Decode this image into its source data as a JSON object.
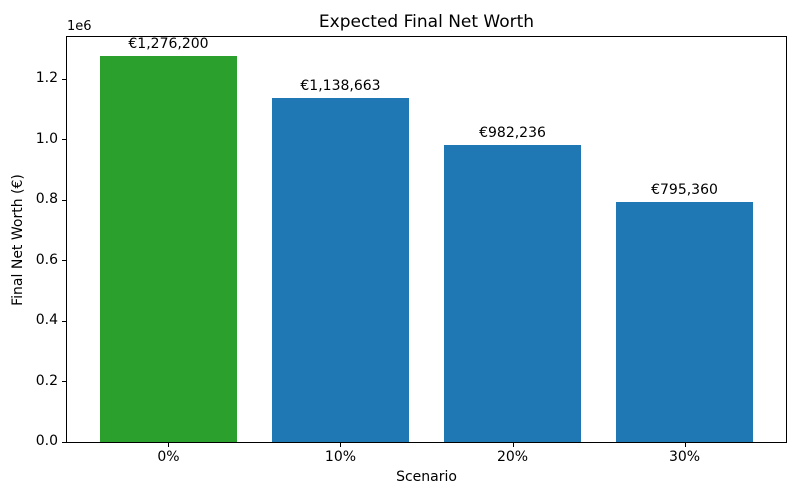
{
  "chart_data": {
    "type": "bar",
    "title": "Expected Final Net Worth",
    "xlabel": "Scenario",
    "ylabel": "Final Net Worth (€)",
    "y_offset_label": "1e6",
    "categories": [
      "0%",
      "10%",
      "20%",
      "30%"
    ],
    "values": [
      1276200,
      1138663,
      982236,
      795360
    ],
    "bar_labels": [
      "€1,276,200",
      "€1,138,663",
      "€982,236",
      "€795,360"
    ],
    "bar_colors": [
      "#2ca02c",
      "#1f77b4",
      "#1f77b4",
      "#1f77b4"
    ],
    "ylim": [
      0,
      1340010
    ],
    "y_ticks": [
      0,
      200000,
      400000,
      600000,
      800000,
      1000000,
      1200000
    ],
    "y_tick_labels": [
      "0.0",
      "0.2",
      "0.4",
      "0.6",
      "0.8",
      "1.0",
      "1.2"
    ],
    "bar_width_fraction": 0.8,
    "grid": false,
    "legend": null,
    "colors": {
      "background": "#ffffff",
      "spine": "#000000",
      "text": "#000000"
    }
  }
}
